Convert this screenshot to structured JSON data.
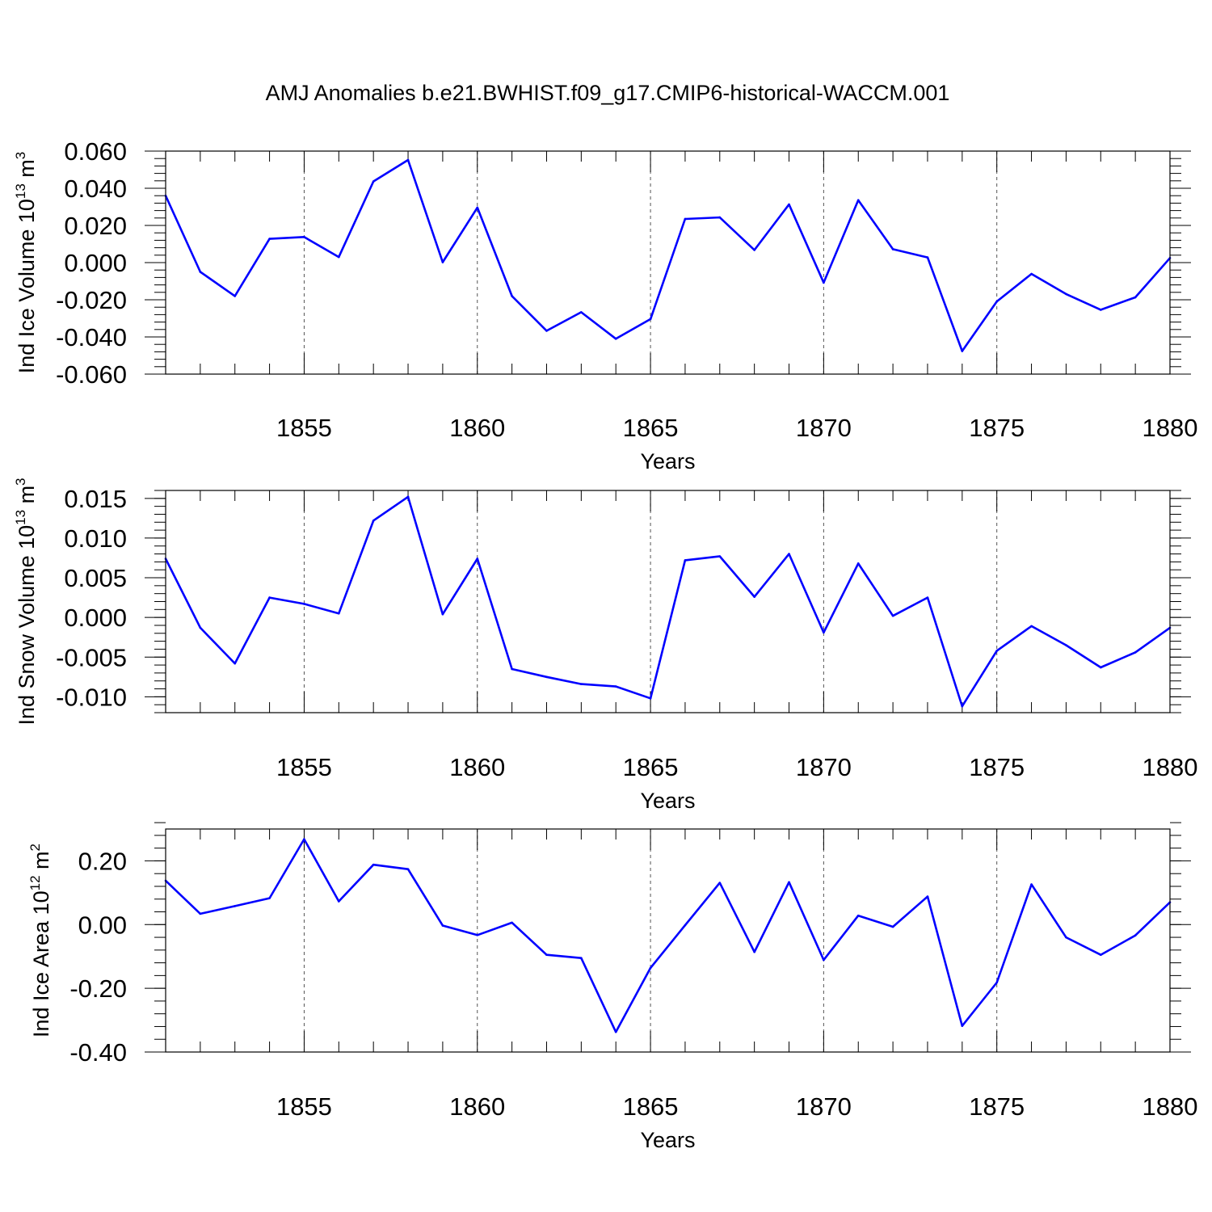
{
  "figure": {
    "title": "AMJ Anomalies b.e21.BWHIST.f09_g17.CMIP6-historical-WACCM.001",
    "line_color": "#0000ff"
  },
  "chart_data": [
    {
      "type": "line",
      "title": "AMJ Anomalies b.e21.BWHIST.f09_g17.CMIP6-historical-WACCM.001",
      "xlabel": "Years",
      "ylabel_base": "Ind Ice Volume 10",
      "ylabel_exp": "13",
      "ylabel_unit": "m",
      "ylabel_unit_exp": "3",
      "xlim": [
        1851,
        1880
      ],
      "ylim": [
        -0.06,
        0.06
      ],
      "xticks": [
        1855,
        1860,
        1865,
        1870,
        1875,
        1880
      ],
      "xtick_labels": [
        "1855",
        "1860",
        "1865",
        "1870",
        "1875",
        "1880"
      ],
      "yticks": [
        -0.06,
        -0.04,
        -0.02,
        0.0,
        0.02,
        0.04,
        0.06
      ],
      "ytick_labels": [
        "-0.060",
        "-0.040",
        "-0.020",
        "0.000",
        "0.020",
        "0.040",
        "0.060"
      ],
      "grid": "vertical dashed at major x ticks",
      "series": [
        {
          "x": [
            1851,
            1852,
            1853,
            1854,
            1855,
            1856,
            1857,
            1858,
            1859,
            1860,
            1861,
            1862,
            1863,
            1864,
            1865,
            1866,
            1867,
            1868,
            1869,
            1870,
            1871,
            1872,
            1873,
            1874,
            1875,
            1876,
            1877,
            1878,
            1879,
            1880
          ],
          "values": [
            0.036,
            -0.005,
            -0.018,
            0.0128,
            0.0138,
            0.003,
            0.0437,
            0.0552,
            0.0002,
            0.0296,
            -0.018,
            -0.0367,
            -0.0267,
            -0.041,
            -0.0304,
            0.0235,
            0.0243,
            0.0068,
            0.0313,
            -0.0108,
            0.0336,
            0.0072,
            0.0028,
            -0.0476,
            -0.0209,
            -0.0061,
            -0.0169,
            -0.0254,
            -0.0187,
            0.0025
          ]
        }
      ]
    },
    {
      "type": "line",
      "xlabel": "Years",
      "ylabel_base": "Ind Snow Volume 10",
      "ylabel_exp": "13",
      "ylabel_unit": "m",
      "ylabel_unit_exp": "3",
      "xlim": [
        1851,
        1880
      ],
      "ylim": [
        -0.012,
        0.016
      ],
      "xticks": [
        1855,
        1860,
        1865,
        1870,
        1875,
        1880
      ],
      "xtick_labels": [
        "1855",
        "1860",
        "1865",
        "1870",
        "1875",
        "1880"
      ],
      "yticks": [
        -0.01,
        -0.005,
        0.0,
        0.005,
        0.01,
        0.015
      ],
      "ytick_labels": [
        "-0.010",
        "-0.005",
        "0.000",
        "0.005",
        "0.010",
        "0.015"
      ],
      "grid": "vertical dashed at major x ticks",
      "series": [
        {
          "x": [
            1851,
            1852,
            1853,
            1854,
            1855,
            1856,
            1857,
            1858,
            1859,
            1860,
            1861,
            1862,
            1863,
            1864,
            1865,
            1866,
            1867,
            1868,
            1869,
            1870,
            1871,
            1872,
            1873,
            1874,
            1875,
            1876,
            1877,
            1878,
            1879,
            1880
          ],
          "values": [
            0.0074,
            -0.0013,
            -0.0058,
            0.0025,
            0.0017,
            0.0005,
            0.0122,
            0.0152,
            0.0004,
            0.0074,
            -0.0065,
            -0.0075,
            -0.0084,
            -0.0087,
            -0.0102,
            0.0072,
            0.0077,
            0.0026,
            0.008,
            -0.0019,
            0.0068,
            0.0002,
            0.0025,
            -0.0112,
            -0.0042,
            -0.0011,
            -0.0035,
            -0.0063,
            -0.0044,
            -0.0013
          ]
        }
      ]
    },
    {
      "type": "line",
      "xlabel": "Years",
      "ylabel_base": "Ind Ice Area 10",
      "ylabel_exp": "12",
      "ylabel_unit": "m",
      "ylabel_unit_exp": "2",
      "xlim": [
        1851,
        1880
      ],
      "ylim": [
        -0.4,
        0.3
      ],
      "xticks": [
        1855,
        1860,
        1865,
        1870,
        1875,
        1880
      ],
      "xtick_labels": [
        "1855",
        "1860",
        "1865",
        "1870",
        "1875",
        "1880"
      ],
      "yticks": [
        -0.4,
        -0.2,
        0.0,
        0.2
      ],
      "ytick_labels": [
        "-0.40",
        "-0.20",
        "0.00",
        "0.20"
      ],
      "grid": "vertical dashed at major x ticks",
      "series": [
        {
          "x": [
            1851,
            1852,
            1853,
            1854,
            1855,
            1856,
            1857,
            1858,
            1859,
            1860,
            1861,
            1862,
            1863,
            1864,
            1865,
            1866,
            1867,
            1868,
            1869,
            1870,
            1871,
            1872,
            1873,
            1874,
            1875,
            1876,
            1877,
            1878,
            1879,
            1880
          ],
          "values": [
            0.138,
            0.034,
            0.058,
            0.083,
            0.268,
            0.073,
            0.188,
            0.174,
            -0.003,
            -0.033,
            0.006,
            -0.095,
            -0.105,
            -0.337,
            -0.136,
            -0.002,
            0.131,
            -0.086,
            0.133,
            -0.111,
            0.028,
            -0.007,
            0.088,
            -0.318,
            -0.182,
            0.126,
            -0.04,
            -0.095,
            -0.034,
            0.07
          ]
        }
      ]
    }
  ]
}
